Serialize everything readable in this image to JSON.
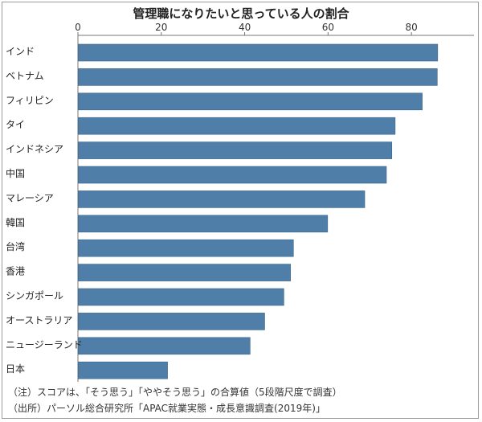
{
  "chart_data": {
    "type": "bar",
    "orientation": "horizontal",
    "title": "管理職になりたいと思っている人の割合",
    "categories": [
      "インド",
      "ベトナム",
      "フィリピン",
      "タイ",
      "インドネシア",
      "中国",
      "マレーシア",
      "韓国",
      "台湾",
      "香港",
      "シンガポール",
      "オーストラリア",
      "ニュージーランド",
      "日本"
    ],
    "values": [
      86.2,
      86.1,
      82.5,
      76.0,
      75.2,
      73.9,
      68.7,
      59.8,
      51.6,
      50.9,
      49.3,
      44.7,
      41.2,
      21.4
    ],
    "xlim": [
      0,
      95
    ],
    "xticks": [
      0,
      20,
      40,
      60,
      80
    ],
    "xticks_label": [
      "0",
      "20",
      "40",
      "60",
      "80"
    ],
    "grid": false,
    "bar_color": "#4f7fa8"
  },
  "notes": {
    "note": "（注）スコアは、「そう思う」「ややそう思う」の合算値（5段階尺度で調査）",
    "source": "（出所）パーソル総合研究所「APAC就業実態・成長意識調査(2019年)」"
  }
}
